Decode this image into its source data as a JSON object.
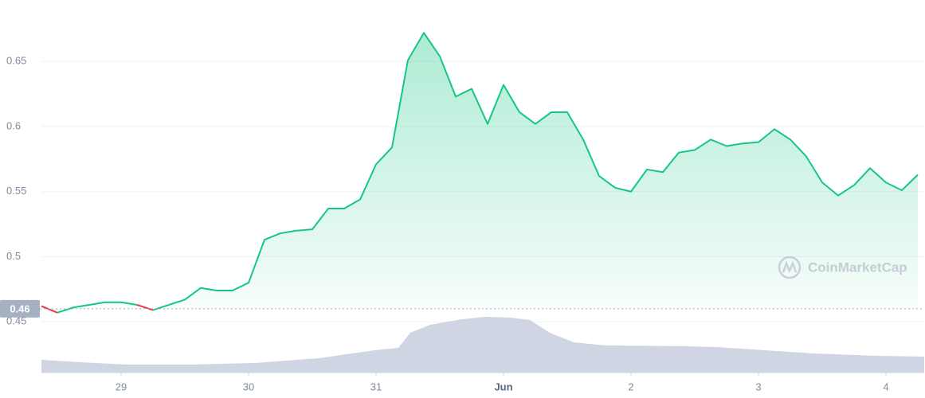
{
  "chart_data": {
    "type": "line",
    "categories": [
      null,
      null,
      null,
      null,
      null,
      "29",
      null,
      null,
      null,
      null,
      null,
      null,
      null,
      "30",
      null,
      null,
      null,
      null,
      null,
      null,
      null,
      "31",
      null,
      null,
      null,
      null,
      null,
      null,
      null,
      "Jun",
      null,
      null,
      null,
      null,
      null,
      null,
      null,
      "2",
      null,
      null,
      null,
      null,
      null,
      null,
      null,
      "3",
      null,
      null,
      null,
      null,
      null,
      null,
      null,
      "4",
      null,
      null
    ],
    "series": [
      {
        "color": "#16c784",
        "below_color": "#ea3943",
        "values": [
          0.462,
          0.457,
          0.461,
          0.463,
          0.465,
          0.465,
          0.463,
          0.459,
          0.463,
          0.467,
          0.476,
          0.474,
          0.474,
          0.48,
          0.513,
          0.518,
          0.52,
          0.521,
          0.537,
          0.537,
          0.544,
          0.571,
          0.584,
          0.651,
          0.672,
          0.654,
          0.623,
          0.629,
          0.602,
          0.632,
          0.611,
          0.602,
          0.611,
          0.611,
          0.59,
          0.562,
          0.553,
          0.55,
          0.567,
          0.565,
          0.58,
          0.582,
          0.59,
          0.585,
          0.587,
          0.588,
          0.598,
          0.59,
          0.577,
          0.557,
          0.547,
          0.555,
          0.568,
          0.557,
          0.551,
          0.563
        ]
      }
    ],
    "reference_line": 0.46,
    "ylim": [
      0.411,
      0.685
    ],
    "yticks": [
      0.45,
      0.5,
      0.55,
      0.6,
      0.65
    ],
    "grid": true,
    "watermark": "CoinMarketCap"
  }
}
